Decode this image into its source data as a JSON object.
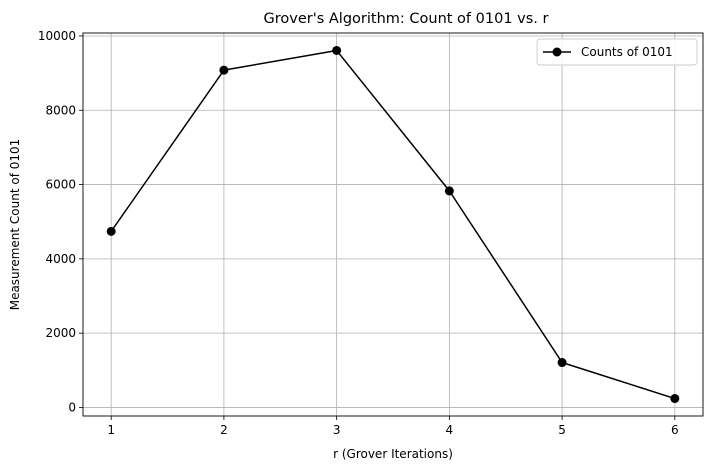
{
  "chart_data": {
    "type": "line",
    "title": "Grover's Algorithm: Count of 0101 vs. r",
    "xlabel": "r (Grover Iterations)",
    "ylabel": "Measurement Count of 0101",
    "x": [
      1,
      2,
      3,
      4,
      5,
      6
    ],
    "series": [
      {
        "name": "Counts of 0101",
        "values": [
          4740,
          9080,
          9610,
          5830,
          1210,
          240
        ],
        "color": "#000000",
        "marker": "circle"
      }
    ],
    "xticks": [
      1,
      2,
      3,
      4,
      5,
      6
    ],
    "xtick_labels": [
      "1",
      "2",
      "3",
      "4",
      "5",
      "6"
    ],
    "yticks": [
      0,
      2000,
      4000,
      6000,
      8000,
      10000
    ],
    "ytick_labels": [
      "0",
      "2000",
      "4000",
      "6000",
      "8000",
      "10000"
    ],
    "xlim": [
      0.75,
      6.25
    ],
    "ylim": [
      -230,
      10080
    ],
    "grid": true,
    "grid_color": "#b0b0b0",
    "legend_position": "top-right"
  }
}
